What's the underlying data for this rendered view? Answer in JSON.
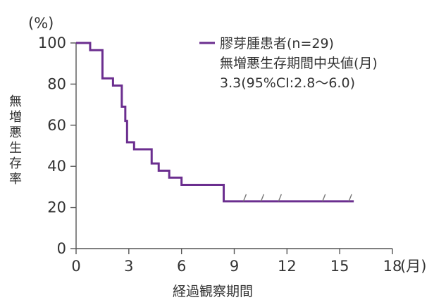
{
  "chart_data": {
    "type": "line",
    "title": "",
    "ylabel": "無増悪生存率",
    "yunit": "(%)",
    "xlabel": "経過観察期間",
    "xunit": "(月)",
    "xlim": [
      0,
      18
    ],
    "ylim": [
      0,
      100
    ],
    "xticks": [
      0,
      3,
      6,
      9,
      12,
      15,
      18
    ],
    "yticks": [
      0,
      20,
      40,
      60,
      80,
      100
    ],
    "grid": false,
    "legend_position": "top-right",
    "color": "#6b2e8f",
    "series": [
      {
        "name": "膠芽腫患者(n=29)",
        "type": "step",
        "points": [
          {
            "x": 0,
            "y": 100
          },
          {
            "x": 0.8,
            "y": 96.5
          },
          {
            "x": 1.5,
            "y": 82.8
          },
          {
            "x": 2.1,
            "y": 79.3
          },
          {
            "x": 2.6,
            "y": 69.0
          },
          {
            "x": 2.8,
            "y": 62.1
          },
          {
            "x": 2.9,
            "y": 51.7
          },
          {
            "x": 3.3,
            "y": 48.3
          },
          {
            "x": 4.3,
            "y": 41.4
          },
          {
            "x": 4.7,
            "y": 37.9
          },
          {
            "x": 5.3,
            "y": 34.5
          },
          {
            "x": 6.0,
            "y": 31.0
          },
          {
            "x": 8.4,
            "y": 23.0
          },
          {
            "x": 15.8,
            "y": 23.0
          }
        ],
        "censored_x": [
          9.6,
          10.6,
          11.6,
          14.1,
          15.6
        ]
      }
    ],
    "annotations": [
      "無増悪生存期間中央値(月)",
      "3.3(95%CI:2.8〜6.0)"
    ]
  }
}
